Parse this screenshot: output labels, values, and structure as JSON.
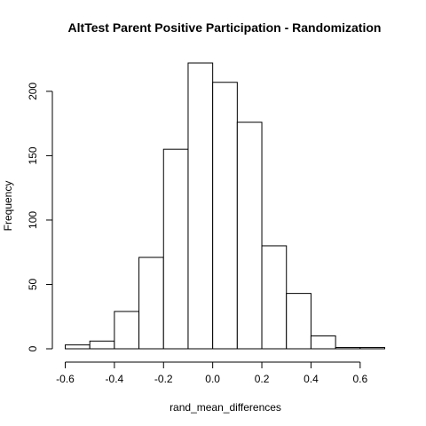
{
  "chart_data": {
    "type": "bar",
    "title": "AltTest Parent Positive Participation - Randomization",
    "xlabel": "rand_mean_differences",
    "ylabel": "Frequency",
    "bins": [
      {
        "x0": -0.6,
        "x1": -0.5,
        "count": 3
      },
      {
        "x0": -0.5,
        "x1": -0.4,
        "count": 6
      },
      {
        "x0": -0.4,
        "x1": -0.3,
        "count": 29
      },
      {
        "x0": -0.3,
        "x1": -0.2,
        "count": 71
      },
      {
        "x0": -0.2,
        "x1": -0.1,
        "count": 155
      },
      {
        "x0": -0.1,
        "x1": 0.0,
        "count": 222
      },
      {
        "x0": 0.0,
        "x1": 0.1,
        "count": 207
      },
      {
        "x0": 0.1,
        "x1": 0.2,
        "count": 176
      },
      {
        "x0": 0.2,
        "x1": 0.3,
        "count": 80
      },
      {
        "x0": 0.3,
        "x1": 0.4,
        "count": 43
      },
      {
        "x0": 0.4,
        "x1": 0.5,
        "count": 10
      },
      {
        "x0": 0.5,
        "x1": 0.6,
        "count": 1
      },
      {
        "x0": 0.6,
        "x1": 0.7,
        "count": 1
      }
    ],
    "xlim": [
      -0.6,
      0.7
    ],
    "ylim": [
      0,
      222
    ],
    "x_ticks": [
      -0.6,
      -0.4,
      -0.2,
      0.0,
      0.2,
      0.4,
      0.6
    ],
    "x_tick_labels": [
      "-0.6",
      "-0.4",
      "-0.2",
      "0.0",
      "0.2",
      "0.4",
      "0.6"
    ],
    "y_ticks": [
      0,
      50,
      100,
      150,
      200
    ],
    "y_tick_labels": [
      "0",
      "50",
      "100",
      "150",
      "200"
    ],
    "grid": false,
    "bar_fill": "#ffffff",
    "bar_stroke": "#000000"
  }
}
